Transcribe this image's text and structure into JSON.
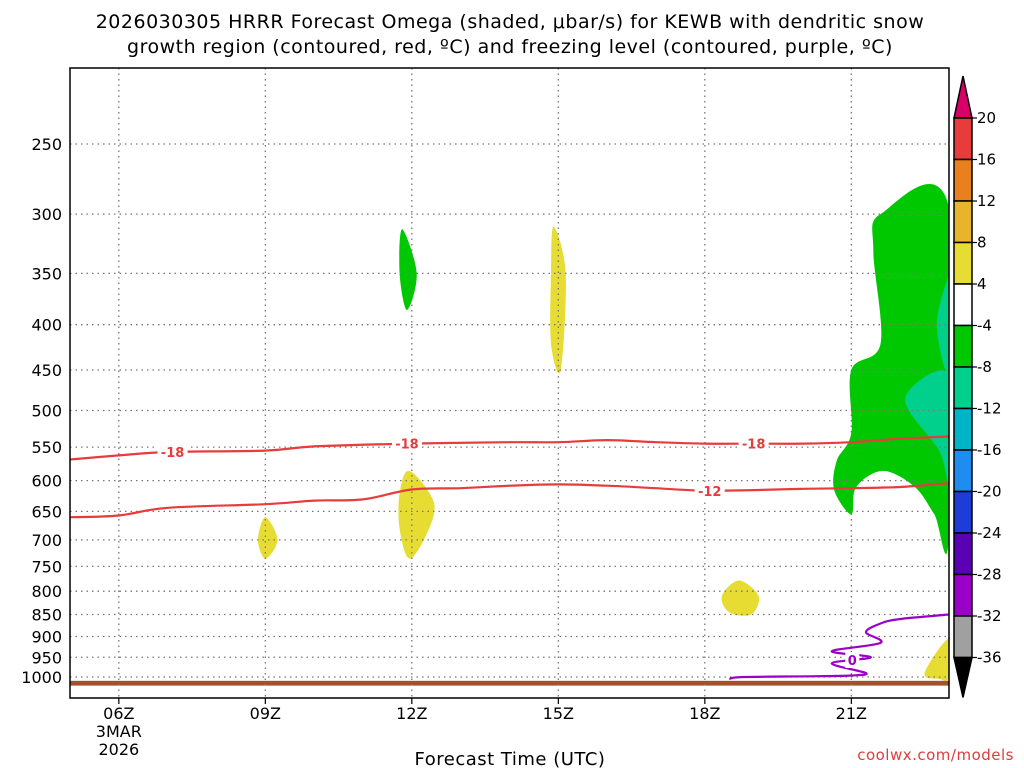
{
  "title_line1": "2026030305 HRRR Forecast Omega (shaded, μbar/s) for KEWB with dendritic snow",
  "title_line2": "growth region (contoured, red, ºC) and freezing level (contoured, purple, ºC)",
  "xlabel": "Forecast Time (UTC)",
  "credit": "coolwx.com/models",
  "chart_data": {
    "type": "heatmap",
    "title": "2026030305 HRRR Forecast Omega (shaded, μbar/s) for KEWB with dendritic snow growth region (contoured, red, ºC) and freezing level (contoured, purple, ºC)",
    "xlabel": "Forecast Time (UTC)",
    "ylabel": "",
    "x_range_hours": [
      5,
      23
    ],
    "y_range_hPa": [
      200,
      1030
    ],
    "y_scale": "log-pressure (inverted)",
    "grid": true,
    "x_ticks": [
      {
        "value": 6,
        "label": "06Z",
        "sub1": "3MAR",
        "sub2": "2026"
      },
      {
        "value": 9,
        "label": "09Z"
      },
      {
        "value": 12,
        "label": "12Z"
      },
      {
        "value": 15,
        "label": "15Z"
      },
      {
        "value": 18,
        "label": "18Z"
      },
      {
        "value": 21,
        "label": "21Z"
      }
    ],
    "y_ticks": [
      250,
      300,
      350,
      400,
      450,
      500,
      550,
      600,
      650,
      700,
      750,
      800,
      850,
      900,
      950,
      1000
    ],
    "colorbar": {
      "levels": [
        "20",
        "16",
        "12",
        "8",
        "4",
        "-4",
        "-8",
        "-12",
        "-16",
        "-20",
        "-24",
        "-28",
        "-32",
        "-36"
      ],
      "colors": [
        "#d80068",
        "#e83c3c",
        "#e8801e",
        "#e8b42c",
        "#e6dc32",
        "#ffffff",
        "#00c800",
        "#00d08c",
        "#00b4c8",
        "#1e8cf0",
        "#1e3cd8",
        "#5a00b4",
        "#9a00c8",
        "#a0a0a0",
        "#000000"
      ]
    },
    "shaded_regions": [
      {
        "name": "omega -4 to -8",
        "color": "#00c800",
        "points": [
          [
            11.8,
            312
          ],
          [
            12.1,
            350
          ],
          [
            11.9,
            385
          ],
          [
            11.75,
            350
          ]
        ]
      },
      {
        "name": "omega 4 to 8",
        "color": "#e6dc32",
        "points": [
          [
            14.9,
            310
          ],
          [
            15.15,
            350
          ],
          [
            15.05,
            450
          ],
          [
            14.85,
            420
          ],
          [
            14.85,
            350
          ]
        ]
      },
      {
        "name": "omega 4 to 8",
        "color": "#e6dc32",
        "points": [
          [
            9.0,
            660
          ],
          [
            9.25,
            700
          ],
          [
            9.0,
            735
          ],
          [
            8.85,
            700
          ]
        ]
      },
      {
        "name": "omega 4 to 8",
        "color": "#e6dc32",
        "points": [
          [
            11.95,
            585
          ],
          [
            12.45,
            635
          ],
          [
            12.3,
            690
          ],
          [
            11.95,
            735
          ],
          [
            11.75,
            680
          ],
          [
            11.75,
            620
          ]
        ]
      },
      {
        "name": "omega 4 to 8",
        "color": "#e6dc32",
        "points": [
          [
            18.35,
            810
          ],
          [
            18.7,
            778
          ],
          [
            19.1,
            810
          ],
          [
            18.95,
            850
          ],
          [
            18.5,
            845
          ]
        ]
      },
      {
        "name": "omega 4 to 8",
        "color": "#e6dc32",
        "points": [
          [
            22.5,
            990
          ],
          [
            23.0,
            905
          ],
          [
            23.0,
            1000
          ],
          [
            22.8,
            1005
          ]
        ]
      },
      {
        "name": "omega -4 to -8",
        "color": "#00c800",
        "points": [
          [
            21.6,
            300
          ],
          [
            23.0,
            295
          ],
          [
            23.0,
            690
          ],
          [
            22.7,
            655
          ],
          [
            22.3,
            610
          ],
          [
            21.65,
            585
          ],
          [
            21.1,
            610
          ],
          [
            21.0,
            655
          ],
          [
            20.65,
            615
          ],
          [
            20.7,
            570
          ],
          [
            21.0,
            530
          ],
          [
            21.0,
            450
          ],
          [
            21.6,
            420
          ],
          [
            21.45,
            330
          ]
        ]
      },
      {
        "name": "omega -8 to -12",
        "color": "#00d08c",
        "points": [
          [
            23.0,
            350
          ],
          [
            22.75,
            400
          ],
          [
            23.0,
            455
          ],
          [
            23.0,
            350
          ]
        ]
      },
      {
        "name": "omega -8 to -12",
        "color": "#00d08c",
        "points": [
          [
            22.1,
            485
          ],
          [
            23.0,
            455
          ],
          [
            23.0,
            600
          ],
          [
            22.8,
            555
          ]
        ]
      }
    ],
    "series": [
      {
        "name": "-18",
        "color": "#e63c3c",
        "label_positions": [
          7.1,
          11.9,
          19.0
        ],
        "points": [
          [
            5,
            568
          ],
          [
            6,
            562
          ],
          [
            7,
            557
          ],
          [
            9,
            555
          ],
          [
            10,
            549
          ],
          [
            12,
            545
          ],
          [
            14,
            543
          ],
          [
            15,
            543
          ],
          [
            16,
            540
          ],
          [
            17,
            543
          ],
          [
            18,
            545
          ],
          [
            19,
            545
          ],
          [
            20,
            545
          ],
          [
            21,
            543
          ],
          [
            22,
            538
          ],
          [
            23,
            535
          ]
        ]
      },
      {
        "name": "-12",
        "color": "#e63c3c",
        "label_positions": [
          18.1
        ],
        "points": [
          [
            5,
            660
          ],
          [
            6,
            657
          ],
          [
            7,
            644
          ],
          [
            9,
            638
          ],
          [
            10,
            632
          ],
          [
            11,
            630
          ],
          [
            12,
            614
          ],
          [
            13,
            612
          ],
          [
            14,
            608
          ],
          [
            15,
            606
          ],
          [
            16,
            608
          ],
          [
            17,
            612
          ],
          [
            18,
            616
          ],
          [
            19,
            615
          ],
          [
            20,
            613
          ],
          [
            21,
            612
          ],
          [
            22,
            610
          ],
          [
            23,
            604
          ]
        ]
      },
      {
        "name": "0",
        "color": "#9b00c8",
        "label_positions": [
          21.02
        ],
        "points": [
          [
            18.5,
            1005
          ],
          [
            18.8,
            1000
          ],
          [
            20.3,
            998
          ],
          [
            21.0,
            996
          ],
          [
            21.3,
            990
          ],
          [
            20.6,
            965
          ],
          [
            21.4,
            950
          ],
          [
            20.6,
            935
          ],
          [
            21.6,
            915
          ],
          [
            21.3,
            890
          ],
          [
            21.6,
            870
          ],
          [
            22.0,
            860
          ],
          [
            23.0,
            850
          ]
        ]
      }
    ],
    "terrain_band_hPa": [
      1010,
      1020
    ]
  }
}
